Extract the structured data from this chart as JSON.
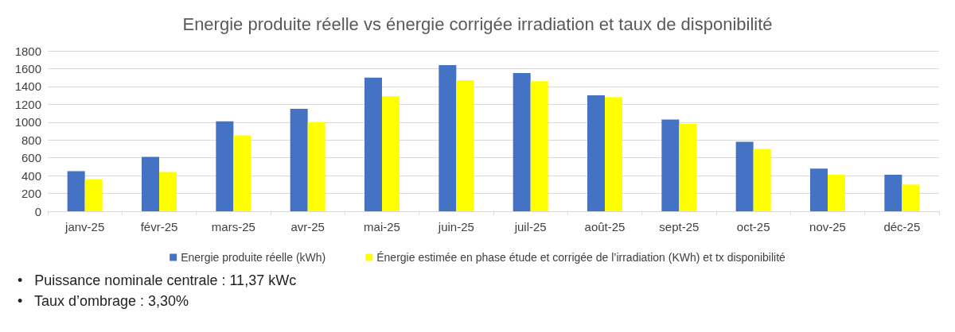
{
  "chart_data": {
    "type": "bar",
    "title": "Energie produite réelle vs énergie corrigée irradiation et taux de disponibilité",
    "categories": [
      "janv-25",
      "févr-25",
      "mars-25",
      "avr-25",
      "mai-25",
      "juin-25",
      "juil-25",
      "août-25",
      "sept-25",
      "oct-25",
      "nov-25",
      "déc-25"
    ],
    "series": [
      {
        "name": "Energie produite réelle (kWh)",
        "color": "#4472c4",
        "values": [
          450,
          610,
          1010,
          1150,
          1500,
          1640,
          1550,
          1300,
          1030,
          780,
          480,
          410
        ]
      },
      {
        "name": "Énergie estimée en phase étude et corrigée de l’irradiation (KWh) et tx disponibilité",
        "color": "#ffff00",
        "values": [
          360,
          440,
          850,
          1000,
          1290,
          1470,
          1460,
          1280,
          980,
          700,
          410,
          300
        ]
      }
    ],
    "ylim": [
      0,
      1800
    ],
    "yticks": [
      0,
      200,
      400,
      600,
      800,
      1000,
      1200,
      1400,
      1600,
      1800
    ],
    "grid": "y",
    "legend": "bottom",
    "annotations": [
      "•   Puissance nominale centrale : 11,37 kWc",
      "•   Taux d’ombrage : 3,30%"
    ]
  }
}
